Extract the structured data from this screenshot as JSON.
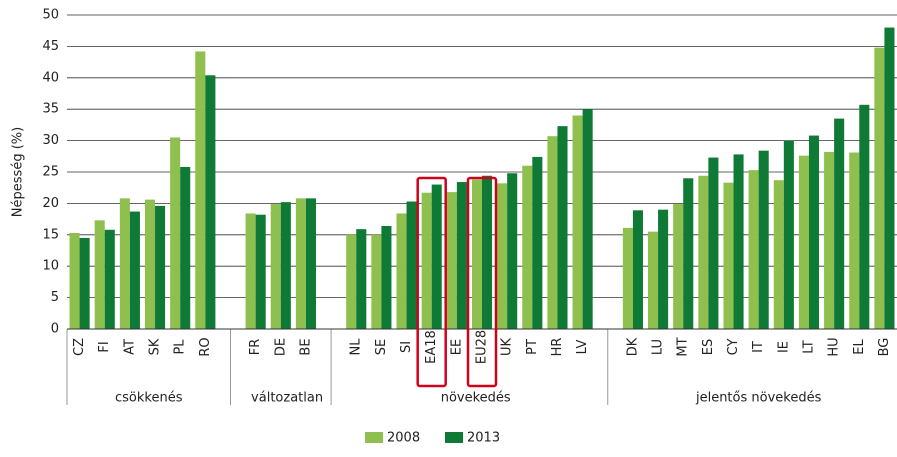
{
  "chart_data": {
    "type": "bar",
    "ylabel": "Népesség (%)",
    "groups": [
      {
        "name": "csökkenés",
        "categories": [
          "CZ",
          "FI",
          "AT",
          "SK",
          "PL",
          "RO"
        ]
      },
      {
        "name": "változatlan",
        "categories": [
          "FR",
          "DE",
          "BE"
        ]
      },
      {
        "name": "növekedés",
        "categories": [
          "NL",
          "SE",
          "SI",
          "EA18",
          "EE",
          "EU28",
          "UK",
          "PT",
          "HR",
          "LV"
        ]
      },
      {
        "name": "jelentős növekedés",
        "categories": [
          "DK",
          "LU",
          "MT",
          "ES",
          "CY",
          "IT",
          "IE",
          "LT",
          "HU",
          "EL",
          "BG"
        ]
      }
    ],
    "series": [
      {
        "name": "2008",
        "color": "#8fc04f",
        "values": [
          15.3,
          17.3,
          20.8,
          20.6,
          30.5,
          44.2,
          18.4,
          19.9,
          20.8,
          15.0,
          15.0,
          18.4,
          21.7,
          21.8,
          23.8,
          23.2,
          26.0,
          30.7,
          34.0,
          16.1,
          15.5,
          19.9,
          24.4,
          23.3,
          25.3,
          23.7,
          27.6,
          28.2,
          28.1,
          44.8
        ]
      },
      {
        "name": "2013",
        "color": "#0e7a36",
        "values": [
          14.5,
          15.8,
          18.7,
          19.6,
          25.8,
          40.4,
          18.2,
          20.2,
          20.8,
          15.9,
          16.4,
          20.3,
          23.0,
          23.4,
          24.4,
          24.8,
          27.4,
          32.3,
          35.0,
          18.9,
          19.0,
          24.0,
          27.3,
          27.8,
          28.4,
          30.0,
          30.8,
          33.5,
          35.7,
          48.0
        ]
      }
    ],
    "ylim": [
      0,
      50
    ],
    "yticks": [
      0,
      5,
      10,
      15,
      20,
      25,
      30,
      35,
      40,
      45,
      50
    ],
    "grid": true
  }
}
